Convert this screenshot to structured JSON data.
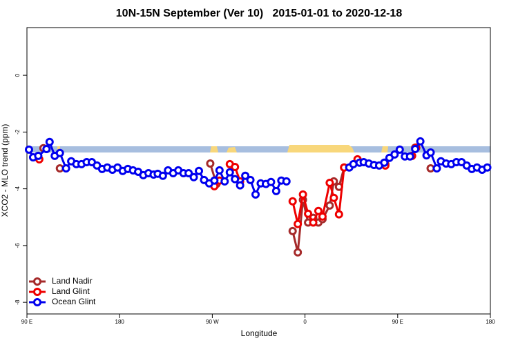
{
  "chart_data": {
    "type": "line",
    "title": "10N-15N September (Ver 10)   2015-01-01 to 2020-12-18",
    "xlabel": "Longitude",
    "ylabel": "XCO2 - MLO trend (ppm)",
    "xlim": [
      -270,
      180
    ],
    "ylim": [
      -8.41,
      1.68
    ],
    "xticks": [
      {
        "value": -270,
        "label": "90 E"
      },
      {
        "value": -180,
        "label": "180"
      },
      {
        "value": -90,
        "label": "90 W"
      },
      0,
      {
        "value": 90,
        "label": "90 E"
      },
      180
    ],
    "yticks": [
      -8,
      -6,
      -4,
      -2,
      0
    ],
    "legend": "bottomleft",
    "series": [
      {
        "name": "Land Nadir",
        "color": "#a52a2a",
        "x": [
          -254,
          null,
          -238,
          null,
          -92,
          -86,
          null,
          -12,
          -7,
          -2,
          3,
          8,
          13,
          17,
          24,
          28,
          33,
          38,
          null,
          78,
          null,
          107,
          null,
          122
        ],
        "values": [
          -2.57,
          null,
          -3.28,
          null,
          -3.11,
          -3.83,
          null,
          -5.49,
          -6.24,
          -4.39,
          -5.19,
          -5.02,
          -5.19,
          -5.07,
          -4.59,
          -3.74,
          -3.93,
          -3.25,
          null,
          -3.13,
          null,
          -2.55,
          null,
          -3.28
        ]
      },
      {
        "name": "Land Glint",
        "color": "#ee0000",
        "x": [
          -258,
          null,
          -88,
          -83,
          null,
          -73,
          -68,
          -63,
          null,
          -12,
          -7,
          -2,
          3,
          8,
          13,
          17,
          24,
          28,
          33,
          38,
          51,
          null,
          78,
          null,
          104,
          108
        ],
        "values": [
          -2.96,
          null,
          -3.91,
          -3.71,
          null,
          -3.13,
          -3.23,
          -3.74,
          null,
          -4.44,
          -5.24,
          -4.2,
          -4.88,
          -5.19,
          -4.78,
          -4.98,
          -3.79,
          -4.32,
          -4.9,
          -3.25,
          -2.96,
          null,
          -3.18,
          null,
          -2.84,
          -2.55
        ]
      },
      {
        "name": "Ocean Glint",
        "color": "#0000ee",
        "x": [
          -268,
          -264,
          -259,
          -251,
          -248,
          -243,
          -238,
          -232,
          -227,
          -222,
          -217,
          -212,
          -207,
          -202,
          -197,
          -192,
          -187,
          -182,
          -177,
          -172,
          -167,
          -162,
          -157,
          -152,
          -147,
          -143,
          -138,
          -133,
          -128,
          -123,
          -118,
          -113,
          -108,
          -103,
          -98,
          -93,
          -88,
          -83,
          -78,
          -73,
          -68,
          -63,
          -58,
          -53,
          -48,
          -43,
          -38,
          -33,
          -28,
          -23,
          -18,
          null,
          43,
          47,
          53,
          57,
          62,
          67,
          72,
          77,
          82,
          87,
          92,
          97,
          102,
          107,
          112,
          118,
          122,
          128,
          132,
          137,
          142,
          147,
          152,
          157,
          162,
          167,
          172,
          177
        ],
        "values": [
          -2.62,
          -2.89,
          -2.84,
          -2.6,
          -2.35,
          -2.84,
          -2.74,
          -3.28,
          -3.03,
          -3.13,
          -3.13,
          -3.06,
          -3.06,
          -3.18,
          -3.3,
          -3.25,
          -3.33,
          -3.25,
          -3.37,
          -3.3,
          -3.35,
          -3.4,
          -3.52,
          -3.45,
          -3.5,
          -3.47,
          -3.54,
          -3.35,
          -3.45,
          -3.35,
          -3.45,
          -3.45,
          -3.59,
          -3.37,
          -3.69,
          -3.81,
          -3.71,
          -3.35,
          -3.74,
          -3.42,
          -3.66,
          -3.88,
          -3.54,
          -3.69,
          -4.2,
          -3.81,
          -3.83,
          -3.76,
          -4.08,
          -3.71,
          -3.74,
          null,
          -3.25,
          -3.13,
          -3.08,
          -3.06,
          -3.11,
          -3.16,
          -3.18,
          -3.08,
          -2.91,
          -2.79,
          -2.62,
          -2.86,
          -2.86,
          -2.6,
          -2.33,
          -2.82,
          -2.72,
          -3.28,
          -3.03,
          -3.11,
          -3.13,
          -3.06,
          -3.06,
          -3.18,
          -3.3,
          -3.25,
          -3.33,
          -3.25
        ]
      }
    ]
  }
}
